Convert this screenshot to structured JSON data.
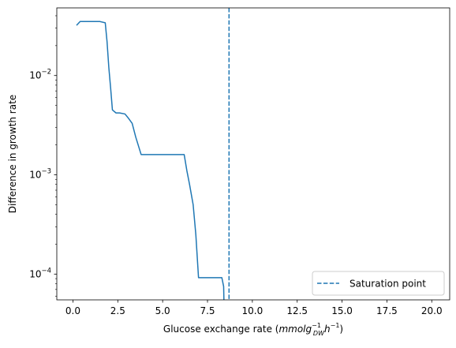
{
  "chart_data": {
    "type": "line",
    "title": "",
    "xlabel_main": "Glucose exchange rate (",
    "xlabel_math": "mmolg",
    "xlabel_sup1": "−1",
    "xlabel_sub": "DW",
    "xlabel_h": "h",
    "xlabel_sup2": "−1",
    "xlabel_close": ")",
    "ylabel": "Difference in growth rate",
    "xlim": [
      -0.9,
      21.0
    ],
    "ylim": [
      5.5e-05,
      0.048
    ],
    "yscale": "log",
    "grid": false,
    "x_ticks": [
      0.0,
      2.5,
      5.0,
      7.5,
      10.0,
      12.5,
      15.0,
      17.5,
      20.0
    ],
    "x_tick_labels": [
      "0.0",
      "2.5",
      "5.0",
      "7.5",
      "10.0",
      "12.5",
      "15.0",
      "17.5",
      "20.0"
    ],
    "y_major_ticks": [
      0.0001,
      0.001,
      0.01
    ],
    "y_tick_labels": [
      {
        "base": "10",
        "exp": "−4"
      },
      {
        "base": "10",
        "exp": "−3"
      },
      {
        "base": "10",
        "exp": "−2"
      }
    ],
    "series": [
      {
        "color": "#1f77b4",
        "x": [
          0.2,
          0.4,
          1.0,
          1.5,
          1.8,
          1.9,
          2.0,
          2.1,
          2.2,
          2.4,
          2.6,
          2.9,
          3.1,
          3.3,
          3.5,
          3.8,
          4.4,
          5.4,
          6.2,
          6.35,
          6.5,
          6.7,
          6.85,
          7.0,
          7.4,
          8.3,
          8.4,
          8.42
        ],
        "y": [
          0.032,
          0.035,
          0.035,
          0.035,
          0.034,
          0.022,
          0.012,
          0.0075,
          0.0045,
          0.0042,
          0.0042,
          0.0041,
          0.0037,
          0.0033,
          0.0024,
          0.0016,
          0.0016,
          0.0016,
          0.0016,
          0.0011,
          0.0008,
          0.0005,
          0.00025,
          9.2e-05,
          9.2e-05,
          9.2e-05,
          7.5e-05,
          5e-05
        ]
      }
    ],
    "vline": {
      "x": 8.7,
      "color": "#1f77b4",
      "style": "dashed",
      "label": "Saturation point"
    },
    "legend_placement": "lower-right"
  }
}
